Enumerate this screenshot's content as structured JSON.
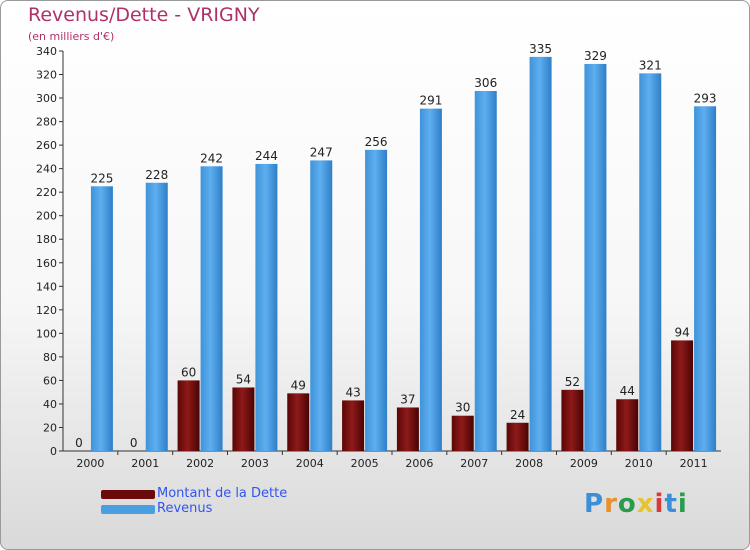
{
  "title": "Revenus/Dette - VRIGNY",
  "subtitle": "(en milliers d'€)",
  "colors": {
    "title": "#b0306a",
    "debt": "#7a0d0d",
    "revenue": "#4a9fe0",
    "legend_text": "#3355ee"
  },
  "chart_data": {
    "type": "bar",
    "title": "Revenus/Dette - VRIGNY",
    "subtitle": "(en milliers d'€)",
    "categories": [
      "2000",
      "2001",
      "2002",
      "2003",
      "2004",
      "2005",
      "2006",
      "2007",
      "2008",
      "2009",
      "2010",
      "2011"
    ],
    "series": [
      {
        "name": "Montant de la Dette",
        "values": [
          0,
          0,
          60,
          54,
          49,
          43,
          37,
          30,
          24,
          52,
          44,
          94
        ]
      },
      {
        "name": "Revenus",
        "values": [
          225,
          228,
          242,
          244,
          247,
          256,
          291,
          306,
          335,
          329,
          321,
          293
        ]
      }
    ],
    "ylim": [
      0,
      340
    ],
    "ytick_step": 20,
    "grid": false,
    "data_labels": true
  },
  "legend": {
    "items": [
      {
        "label": "Montant de la Dette",
        "color": "#6b0a0a"
      },
      {
        "label": "Revenus",
        "color": "#4a9fe0"
      }
    ]
  },
  "logo": {
    "text": "Proxiti"
  }
}
